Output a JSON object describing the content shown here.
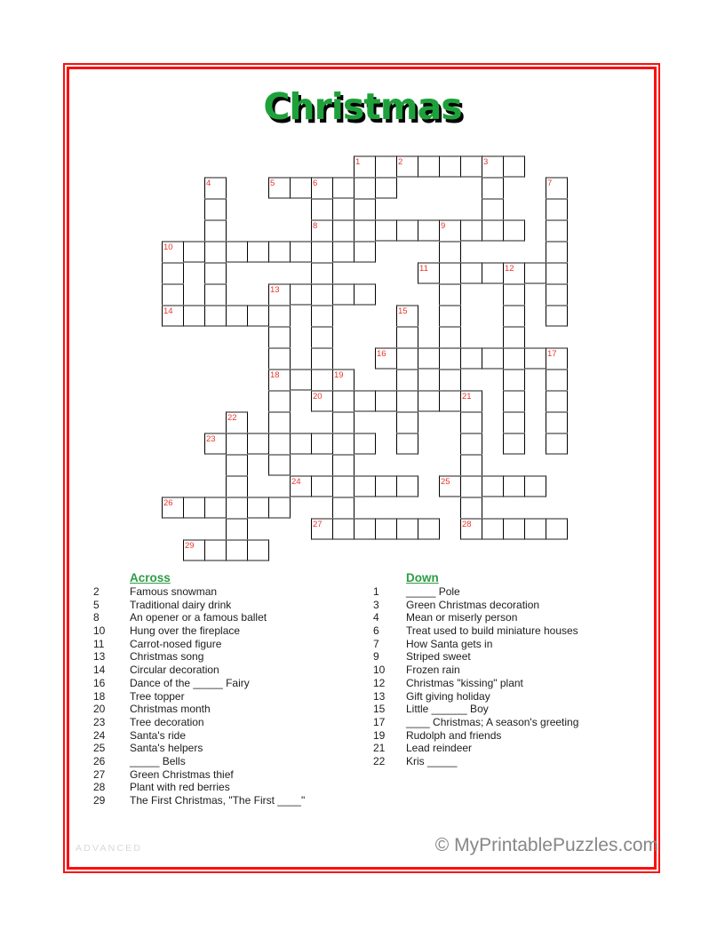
{
  "page": {
    "title": "Christmas",
    "difficulty_label": "ADVANCED",
    "copyright": "© MyPrintablePuzzles.com"
  },
  "colors": {
    "title_green": "#1ea13b",
    "section_header_green": "#2e9c46",
    "cell_number_red": "#e8352b",
    "grid_horizontal_line_gray": "#8e8e8e",
    "grid_vertical_line_black": "#000000",
    "page_border_red": "#fb0f0c",
    "difficulty_gray": "#d8d8d8",
    "copyright_gray": "#878787"
  },
  "grid": {
    "rows": 19,
    "cols": 19,
    "cell_size": 24,
    "cells_by_row": [
      [
        9,
        10,
        11,
        12,
        13,
        14,
        15,
        16
      ],
      [
        2,
        5,
        6,
        7,
        8,
        9,
        10,
        15,
        18
      ],
      [
        2,
        7,
        9,
        15,
        18
      ],
      [
        2,
        7,
        8,
        9,
        10,
        11,
        12,
        13,
        14,
        15,
        16,
        18
      ],
      [
        0,
        1,
        2,
        3,
        4,
        5,
        6,
        7,
        8,
        9,
        13,
        18
      ],
      [
        0,
        2,
        7,
        12,
        13,
        14,
        15,
        16,
        17,
        18
      ],
      [
        0,
        2,
        5,
        6,
        7,
        8,
        9,
        13,
        16,
        18
      ],
      [
        0,
        1,
        2,
        3,
        4,
        5,
        7,
        11,
        13,
        16,
        18
      ],
      [
        5,
        7,
        11,
        13,
        16
      ],
      [
        5,
        7,
        10,
        11,
        12,
        13,
        14,
        15,
        16,
        17,
        18
      ],
      [
        5,
        6,
        7,
        8,
        11,
        13,
        16,
        18
      ],
      [
        5,
        7,
        8,
        9,
        10,
        11,
        12,
        13,
        14,
        16,
        18
      ],
      [
        3,
        5,
        8,
        11,
        14,
        16,
        18
      ],
      [
        2,
        3,
        4,
        5,
        6,
        7,
        8,
        9,
        11,
        14,
        16,
        18
      ],
      [
        3,
        5,
        8,
        14
      ],
      [
        3,
        6,
        7,
        8,
        9,
        10,
        11,
        13,
        14,
        15,
        16,
        17
      ],
      [
        0,
        1,
        2,
        3,
        4,
        5,
        8,
        14
      ],
      [
        3,
        7,
        8,
        9,
        10,
        11,
        12,
        14,
        15,
        16,
        17,
        18
      ],
      [
        1,
        2,
        3,
        4
      ]
    ],
    "numbers": [
      {
        "num": "1",
        "row": 0,
        "col": 9
      },
      {
        "num": "2",
        "row": 0,
        "col": 11
      },
      {
        "num": "3",
        "row": 0,
        "col": 15
      },
      {
        "num": "4",
        "row": 1,
        "col": 2
      },
      {
        "num": "5",
        "row": 1,
        "col": 5
      },
      {
        "num": "6",
        "row": 1,
        "col": 7
      },
      {
        "num": "7",
        "row": 1,
        "col": 18
      },
      {
        "num": "8",
        "row": 3,
        "col": 7
      },
      {
        "num": "9",
        "row": 3,
        "col": 13
      },
      {
        "num": "10",
        "row": 4,
        "col": 0
      },
      {
        "num": "11",
        "row": 5,
        "col": 12
      },
      {
        "num": "12",
        "row": 5,
        "col": 16
      },
      {
        "num": "13",
        "row": 6,
        "col": 5
      },
      {
        "num": "14",
        "row": 7,
        "col": 0
      },
      {
        "num": "15",
        "row": 7,
        "col": 11
      },
      {
        "num": "16",
        "row": 9,
        "col": 10
      },
      {
        "num": "17",
        "row": 9,
        "col": 18
      },
      {
        "num": "18",
        "row": 10,
        "col": 5
      },
      {
        "num": "19",
        "row": 10,
        "col": 8
      },
      {
        "num": "20",
        "row": 11,
        "col": 7
      },
      {
        "num": "21",
        "row": 11,
        "col": 14
      },
      {
        "num": "22",
        "row": 12,
        "col": 3
      },
      {
        "num": "23",
        "row": 13,
        "col": 2
      },
      {
        "num": "24",
        "row": 15,
        "col": 6
      },
      {
        "num": "25",
        "row": 15,
        "col": 13
      },
      {
        "num": "26",
        "row": 16,
        "col": 0
      },
      {
        "num": "27",
        "row": 17,
        "col": 7
      },
      {
        "num": "28",
        "row": 17,
        "col": 14
      },
      {
        "num": "29",
        "row": 18,
        "col": 1
      }
    ]
  },
  "clues": {
    "across_label": "Across",
    "down_label": "Down",
    "across": [
      {
        "num": "2",
        "text": "Famous snowman"
      },
      {
        "num": "5",
        "text": "Traditional dairy drink"
      },
      {
        "num": "8",
        "text": "An opener or a famous ballet"
      },
      {
        "num": "10",
        "text": "Hung over the fireplace"
      },
      {
        "num": "11",
        "text": "Carrot-nosed figure"
      },
      {
        "num": "13",
        "text": "Christmas song"
      },
      {
        "num": "14",
        "text": "Circular decoration"
      },
      {
        "num": "16",
        "text": "Dance of the _____ Fairy"
      },
      {
        "num": "18",
        "text": "Tree topper"
      },
      {
        "num": "20",
        "text": "Christmas month"
      },
      {
        "num": "23",
        "text": "Tree decoration"
      },
      {
        "num": "24",
        "text": "Santa's ride"
      },
      {
        "num": "25",
        "text": "Santa's helpers"
      },
      {
        "num": "26",
        "text": "_____ Bells"
      },
      {
        "num": "27",
        "text": "Green Christmas thief"
      },
      {
        "num": "28",
        "text": "Plant with red berries"
      },
      {
        "num": "29",
        "text": "The First Christmas, \"The First ____\""
      }
    ],
    "down": [
      {
        "num": "1",
        "text": "_____ Pole"
      },
      {
        "num": "3",
        "text": "Green Christmas decoration"
      },
      {
        "num": "4",
        "text": "Mean or miserly person"
      },
      {
        "num": "6",
        "text": "Treat used to build miniature houses"
      },
      {
        "num": "7",
        "text": "How Santa gets in"
      },
      {
        "num": "9",
        "text": "Striped sweet"
      },
      {
        "num": "10",
        "text": "Frozen rain"
      },
      {
        "num": "12",
        "text": "Christmas \"kissing\" plant"
      },
      {
        "num": "13",
        "text": "Gift giving holiday"
      },
      {
        "num": "15",
        "text": "Little ______ Boy"
      },
      {
        "num": "17",
        "text": "____ Christmas; A season's greeting"
      },
      {
        "num": "19",
        "text": "Rudolph and friends"
      },
      {
        "num": "21",
        "text": "Lead reindeer"
      },
      {
        "num": "22",
        "text": "Kris _____"
      }
    ]
  }
}
